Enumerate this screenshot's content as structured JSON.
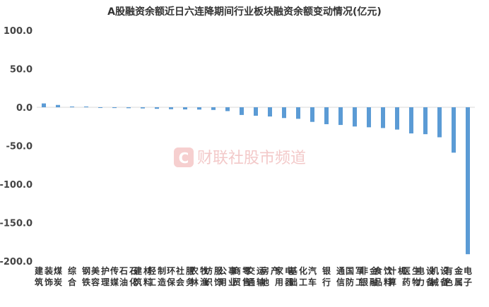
{
  "chart_data": {
    "type": "bar",
    "title": "A股融资余额近日六连降期间行业板块融资余额变动情况(亿元)",
    "xlabel": "",
    "ylabel": "",
    "ylim": [
      -200,
      100
    ],
    "yticks": [
      "100.0",
      "50.0",
      "0.0",
      "-50.0",
      "-100.0",
      "-150.0",
      "-200.0"
    ],
    "grid": false,
    "legend": "none",
    "bar_color": "#5b9bd5",
    "categories": [
      "建筑装饰",
      "煤炭",
      "综合",
      "钢铁",
      "美容护理",
      "传媒",
      "石油石化",
      "建筑材料",
      "轻工制造",
      "环保",
      "社会服务",
      "农林牧渔",
      "纺织服饰",
      "公用事业",
      "商贸零售",
      "交通运输",
      "房地产",
      "家用电器",
      "基础化工",
      "汽车",
      "银行",
      "通信",
      "国防军工",
      "非银金融",
      "食品饮料",
      "计算机",
      "医药生物",
      "电力设备",
      "机械设备",
      "有色金属",
      "电子"
    ],
    "values": [
      5.0,
      3.0,
      1.0,
      1.0,
      -0.8,
      -1.0,
      -1.2,
      -1.5,
      -2.0,
      -2.5,
      -2.8,
      -3.0,
      -3.5,
      -5.0,
      -10.0,
      -11.0,
      -12.0,
      -14.0,
      -15.0,
      -19.0,
      -22.0,
      -23.0,
      -25.0,
      -26.0,
      -27.0,
      -29.0,
      -34.0,
      -35.0,
      -39.0,
      -59.0,
      -191.0
    ]
  },
  "watermark": {
    "logo_letter": "C",
    "text": "财联社股市频道"
  }
}
